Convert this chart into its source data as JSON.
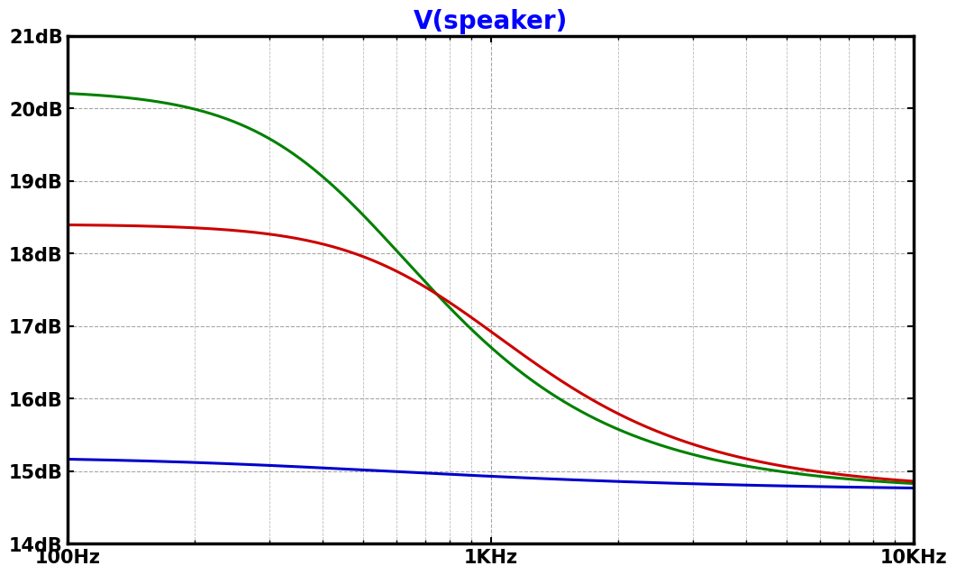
{
  "title": "V(speaker)",
  "title_color": "#0000ff",
  "title_fontsize": 20,
  "xmin": 100,
  "xmax": 10000,
  "ymin": 14,
  "ymax": 21,
  "yticks": [
    14,
    15,
    16,
    17,
    18,
    19,
    20,
    21
  ],
  "xtick_labels": [
    "100Hz",
    "1KHz",
    "10KHz"
  ],
  "xtick_positions": [
    100,
    1000,
    10000
  ],
  "background_color": "#ffffff",
  "grid_color": "#777777",
  "axis_color": "#000000",
  "curves": [
    {
      "color": "#008000",
      "low_db": 20.25,
      "high_db": 14.72,
      "fc": 480,
      "order": 1.3
    },
    {
      "color": "#cc0000",
      "low_db": 18.4,
      "high_db": 14.72,
      "fc": 800,
      "order": 1.3
    },
    {
      "color": "#0000cc",
      "low_db": 15.2,
      "high_db": 14.72,
      "fc": 350,
      "order": 0.7
    }
  ]
}
